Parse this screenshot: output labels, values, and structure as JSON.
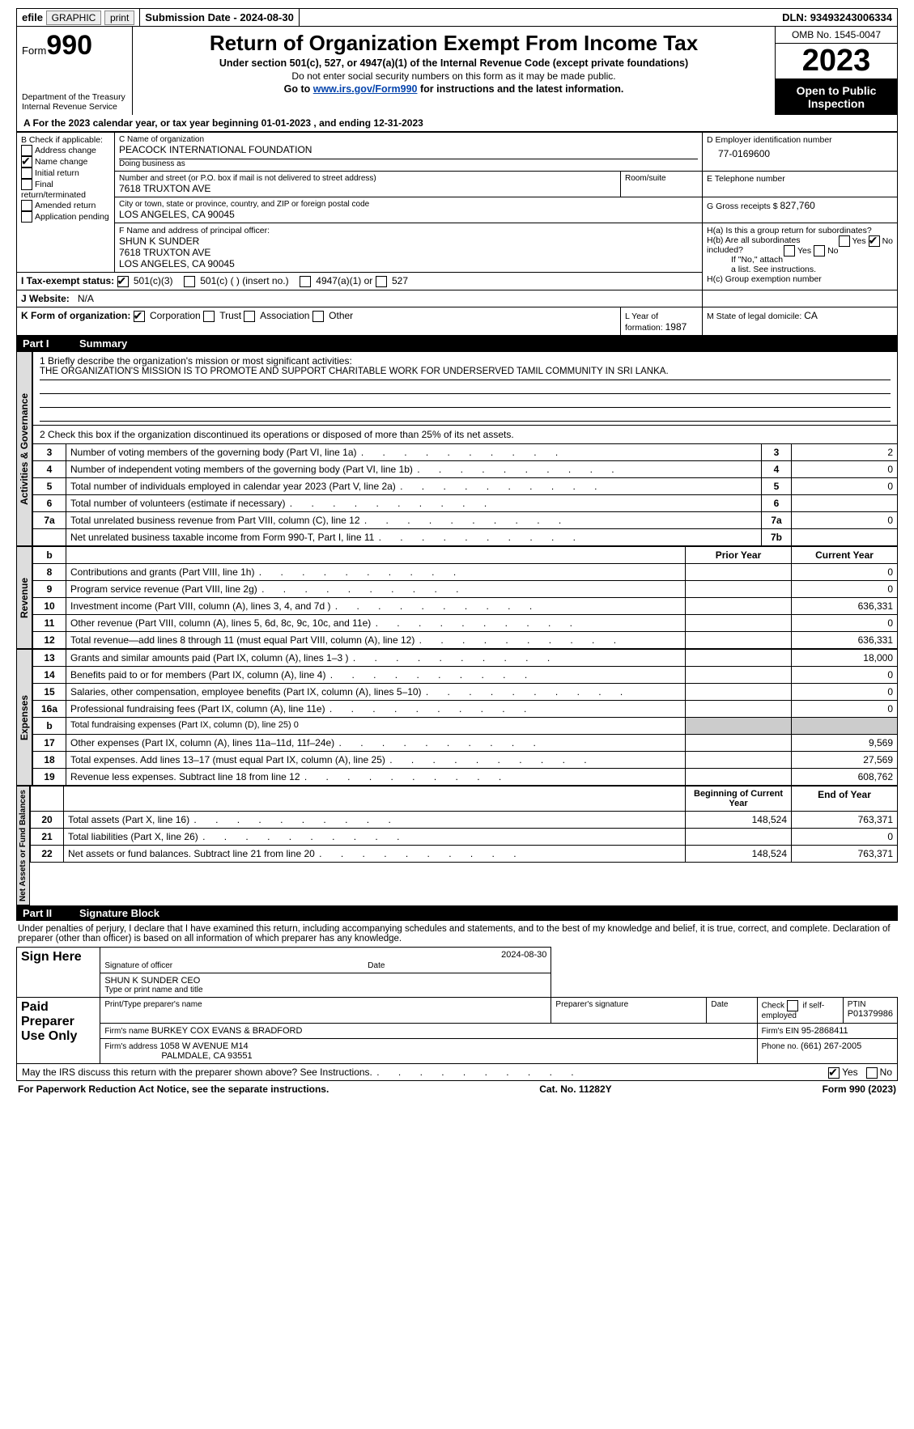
{
  "topbar": {
    "efile_prefix": "efile",
    "efile_btn": "GRAPHIC",
    "print_btn": "print",
    "sub_label": "Submission Date - ",
    "sub_date": "2024-08-30",
    "dln_label": "DLN: ",
    "dln": "93493243006334"
  },
  "header": {
    "form_word": "Form",
    "form_num": "990",
    "dept1": "Department of the Treasury",
    "dept2": "Internal Revenue Service",
    "title": "Return of Organization Exempt From Income Tax",
    "sub1": "Under section 501(c), 527, or 4947(a)(1) of the Internal Revenue Code (except private foundations)",
    "sub2": "Do not enter social security numbers on this form as it may be made public.",
    "sub3_pre": "Go to ",
    "sub3_link": "www.irs.gov/Form990",
    "sub3_post": " for instructions and the latest information.",
    "omb": "OMB No. 1545-0047",
    "year": "2023",
    "open_pub": "Open to Public Inspection"
  },
  "period": {
    "label_a": "A For the 2023 calendar year, or tax year beginning ",
    "begin": "01-01-2023",
    "label_mid": " , and ending ",
    "end": "12-31-2023"
  },
  "boxB": {
    "title": "B Check if applicable:",
    "items": [
      {
        "label": "Address change",
        "checked": false
      },
      {
        "label": "Name change",
        "checked": true
      },
      {
        "label": "Initial return",
        "checked": false
      },
      {
        "label": "Final return/terminated",
        "checked": false
      },
      {
        "label": "Amended return",
        "checked": false
      },
      {
        "label": "Application pending",
        "checked": false
      }
    ]
  },
  "boxC": {
    "name_lbl": "C Name of organization",
    "name": "PEACOCK INTERNATIONAL FOUNDATION",
    "dba_lbl": "Doing business as",
    "dba": "",
    "addr_lbl": "Number and street (or P.O. box if mail is not delivered to street address)",
    "addr": "7618 TRUXTON AVE",
    "room_lbl": "Room/suite",
    "city_lbl": "City or town, state or province, country, and ZIP or foreign postal code",
    "city": "LOS ANGELES, CA  90045"
  },
  "boxD": {
    "lbl": "D Employer identification number",
    "val": "77-0169600"
  },
  "boxE": {
    "lbl": "E Telephone number",
    "val": ""
  },
  "boxG": {
    "lbl": "G Gross receipts $ ",
    "val": "827,760"
  },
  "boxF": {
    "lbl": "F  Name and address of principal officer:",
    "name": "SHUN K SUNDER",
    "addr1": "7618 TRUXTON AVE",
    "addr2": "LOS ANGELES, CA  90045"
  },
  "boxH": {
    "a_lbl": "H(a)  Is this a group return for subordinates?",
    "a_yes": "Yes",
    "a_no": "No",
    "a_checked": "No",
    "b_lbl": "H(b)  Are all subordinates included?",
    "b_yes": "Yes",
    "b_no": "No",
    "b_note": "If \"No,\" attach a list. See instructions.",
    "c_lbl": "H(c)  Group exemption number "
  },
  "boxI": {
    "lbl": "I   Tax-exempt status:",
    "o1": "501(c)(3)",
    "o1c": true,
    "o2": "501(c) (  ) (insert no.)",
    "o2c": false,
    "o3": "4947(a)(1) or",
    "o3c": false,
    "o4": "527",
    "o4c": false
  },
  "boxJ": {
    "lbl": "J   Website: ",
    "val": "N/A"
  },
  "boxK": {
    "lbl": "K Form of organization:",
    "o1": "Corporation",
    "o1c": true,
    "o2": "Trust",
    "o2c": false,
    "o3": "Association",
    "o3c": false,
    "o4": "Other",
    "o4c": false
  },
  "boxL": {
    "lbl": "L Year of formation: ",
    "val": "1987"
  },
  "boxM": {
    "lbl": "M State of legal domicile: ",
    "val": "CA"
  },
  "part1": {
    "num": "Part I",
    "title": "Summary"
  },
  "summary": {
    "q1_lbl": "1   Briefly describe the organization's mission or most significant activities:",
    "q1_val": "THE ORGANIZATION'S MISSION IS TO PROMOTE AND SUPPORT CHARITABLE WORK FOR UNDERSERVED TAMIL COMMUNITY IN SRI LANKA.",
    "q2": "2   Check this box       if the organization discontinued its operations or disposed of more than 25% of its net assets.",
    "lines_gov": [
      {
        "n": "3",
        "t": "Number of voting members of the governing body (Part VI, line 1a)",
        "ln": "3",
        "v": "2"
      },
      {
        "n": "4",
        "t": "Number of independent voting members of the governing body (Part VI, line 1b)",
        "ln": "4",
        "v": "0"
      },
      {
        "n": "5",
        "t": "Total number of individuals employed in calendar year 2023 (Part V, line 2a)",
        "ln": "5",
        "v": "0"
      },
      {
        "n": "6",
        "t": "Total number of volunteers (estimate if necessary)",
        "ln": "6",
        "v": ""
      },
      {
        "n": "7a",
        "t": "Total unrelated business revenue from Part VIII, column (C), line 12",
        "ln": "7a",
        "v": "0"
      },
      {
        "n": "",
        "t": "Net unrelated business taxable income from Form 990-T, Part I, line 11",
        "ln": "7b",
        "v": ""
      }
    ],
    "col_hdr": {
      "b": "b",
      "py": "Prior Year",
      "cy": "Current Year"
    },
    "lines_rev": [
      {
        "n": "8",
        "t": "Contributions and grants (Part VIII, line 1h)",
        "py": "",
        "cy": "0"
      },
      {
        "n": "9",
        "t": "Program service revenue (Part VIII, line 2g)",
        "py": "",
        "cy": "0"
      },
      {
        "n": "10",
        "t": "Investment income (Part VIII, column (A), lines 3, 4, and 7d )",
        "py": "",
        "cy": "636,331"
      },
      {
        "n": "11",
        "t": "Other revenue (Part VIII, column (A), lines 5, 6d, 8c, 9c, 10c, and 11e)",
        "py": "",
        "cy": "0"
      },
      {
        "n": "12",
        "t": "Total revenue—add lines 8 through 11 (must equal Part VIII, column (A), line 12)",
        "py": "",
        "cy": "636,331"
      }
    ],
    "lines_exp": [
      {
        "n": "13",
        "t": "Grants and similar amounts paid (Part IX, column (A), lines 1–3 )",
        "py": "",
        "cy": "18,000"
      },
      {
        "n": "14",
        "t": "Benefits paid to or for members (Part IX, column (A), line 4)",
        "py": "",
        "cy": "0"
      },
      {
        "n": "15",
        "t": "Salaries, other compensation, employee benefits (Part IX, column (A), lines 5–10)",
        "py": "",
        "cy": "0"
      },
      {
        "n": "16a",
        "t": "Professional fundraising fees (Part IX, column (A), line 11e)",
        "py": "",
        "cy": "0"
      },
      {
        "n": "b",
        "t": "Total fundraising expenses (Part IX, column (D), line 25) 0",
        "shade": true
      },
      {
        "n": "17",
        "t": "Other expenses (Part IX, column (A), lines 11a–11d, 11f–24e)",
        "py": "",
        "cy": "9,569"
      },
      {
        "n": "18",
        "t": "Total expenses. Add lines 13–17 (must equal Part IX, column (A), line 25)",
        "py": "",
        "cy": "27,569"
      },
      {
        "n": "19",
        "t": "Revenue less expenses. Subtract line 18 from line 12",
        "py": "",
        "cy": "608,762"
      }
    ],
    "col_hdr2": {
      "by": "Beginning of Current Year",
      "ey": "End of Year"
    },
    "lines_net": [
      {
        "n": "20",
        "t": "Total assets (Part X, line 16)",
        "py": "148,524",
        "cy": "763,371"
      },
      {
        "n": "21",
        "t": "Total liabilities (Part X, line 26)",
        "py": "",
        "cy": "0"
      },
      {
        "n": "22",
        "t": "Net assets or fund balances. Subtract line 21 from line 20",
        "py": "148,524",
        "cy": "763,371"
      }
    ],
    "vlabels": {
      "gov": "Activities & Governance",
      "rev": "Revenue",
      "exp": "Expenses",
      "net": "Net Assets or Fund Balances"
    }
  },
  "part2": {
    "num": "Part II",
    "title": "Signature Block"
  },
  "sig": {
    "perjury": "Under penalties of perjury, I declare that I have examined this return, including accompanying schedules and statements, and to the best of my knowledge and belief, it is true, correct, and complete. Declaration of preparer (other than officer) is based on all information of which preparer has any knowledge.",
    "sign_here": "Sign Here",
    "sig_officer_lbl": "Signature of officer",
    "sig_date": "2024-08-30",
    "date_lbl": "Date",
    "name_title": "SHUN K SUNDER CEO",
    "type_lbl": "Type or print name and title",
    "paid": "Paid Preparer Use Only",
    "p_name_lbl": "Print/Type preparer's name",
    "p_sig_lbl": "Preparer's signature",
    "p_date_lbl": "Date",
    "p_self_lbl": "Check        if self-employed",
    "ptin_lbl": "PTIN",
    "ptin": "P01379986",
    "firm_name_lbl": "Firm's name   ",
    "firm_name": "BURKEY COX EVANS & BRADFORD",
    "firm_ein_lbl": "Firm's EIN  ",
    "firm_ein": "95-2868411",
    "firm_addr_lbl": "Firm's address ",
    "firm_addr1": "1058 W AVENUE M14",
    "firm_addr2": "PALMDALE, CA  93551",
    "phone_lbl": "Phone no. ",
    "phone": "(661) 267-2005",
    "discuss": "May the IRS discuss this return with the preparer shown above? See Instructions.",
    "yes": "Yes",
    "no": "No",
    "discuss_checked": "Yes"
  },
  "footer": {
    "left": "For Paperwork Reduction Act Notice, see the separate instructions.",
    "mid": "Cat. No. 11282Y",
    "right": "Form 990 (2023)"
  },
  "colors": {
    "header_bg": "#000",
    "link": "#0645ad",
    "shade": "#cccccc",
    "vlabel_bg": "#dddddd"
  }
}
